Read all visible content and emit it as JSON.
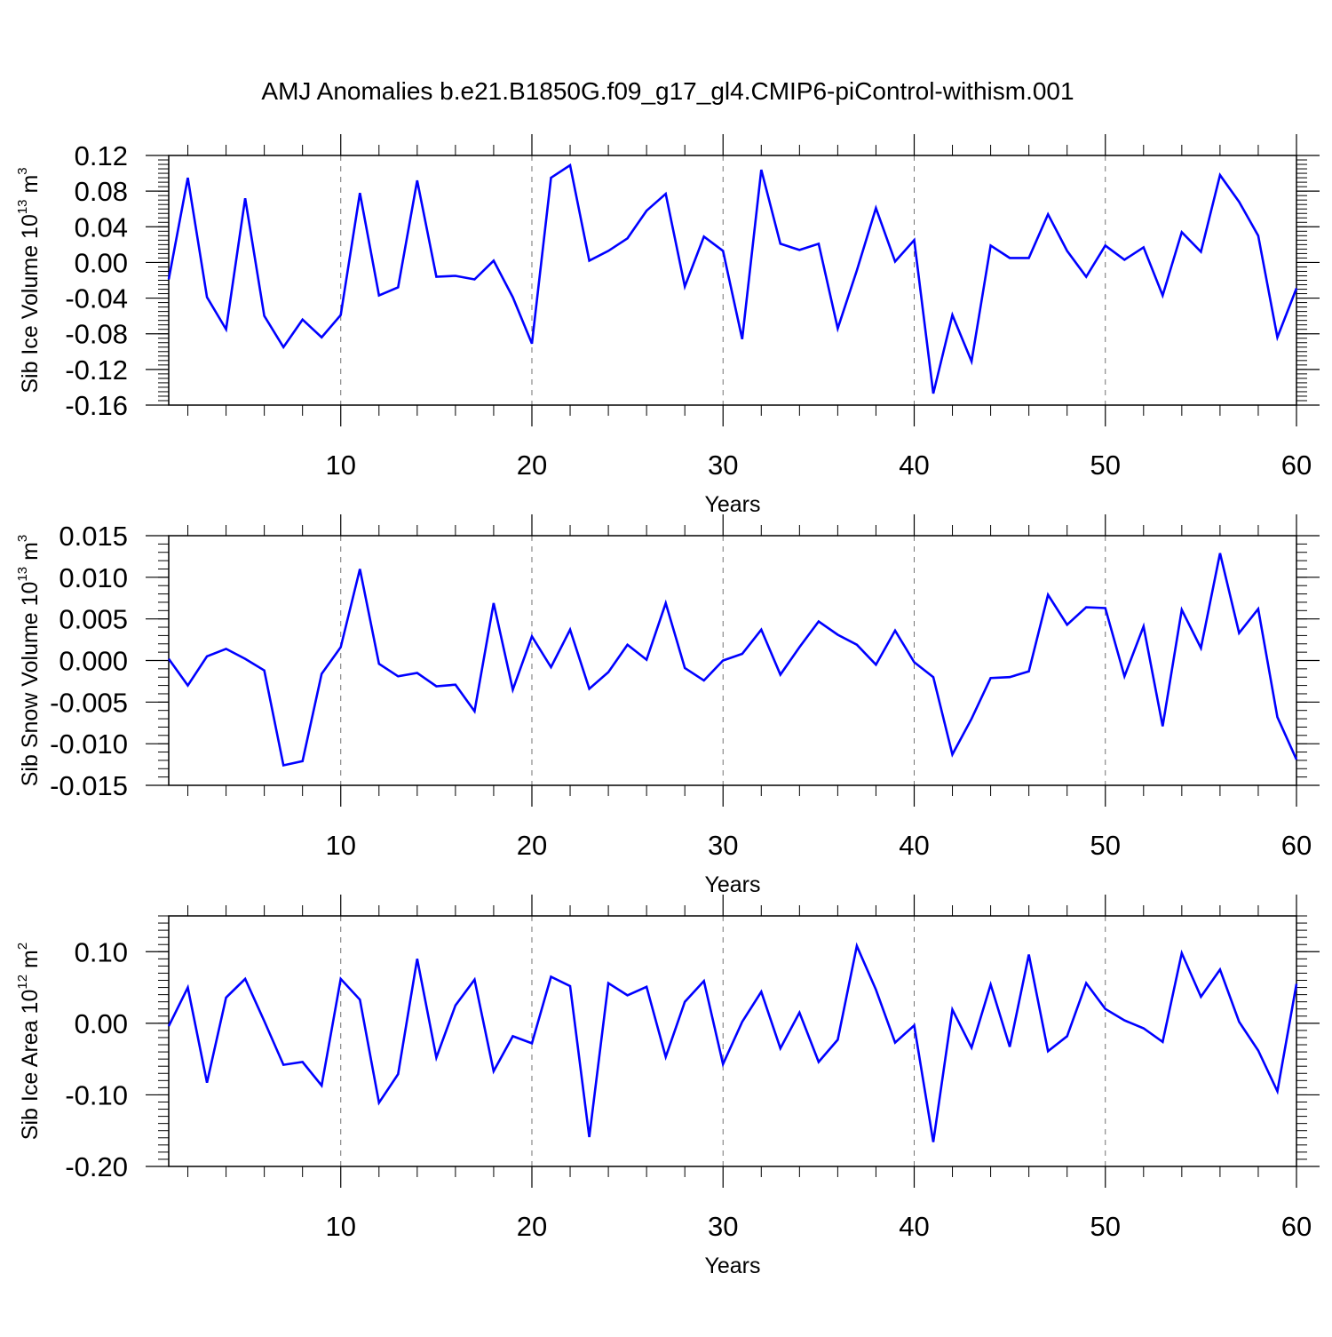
{
  "title": "AMJ Anomalies b.e21.B1850G.f09_g17_gl4.CMIP6-piControl-withism.001",
  "colors": {
    "line": "#0000ff",
    "axes": "#000000",
    "grid": "#000000"
  },
  "chart_data": [
    {
      "type": "line",
      "xlabel": "Years",
      "ylabel": {
        "text": "Sib Ice Volume 10",
        "exp": "13",
        "unit": " m",
        "unit_exp": "3"
      },
      "xlim": [
        1,
        60
      ],
      "ylim": [
        -0.16,
        0.12
      ],
      "xticks": [
        "10",
        "20",
        "30",
        "40",
        "50",
        "60"
      ],
      "yticks": [
        "0.12",
        "0.08",
        "0.04",
        "0.00",
        "-0.04",
        "-0.08",
        "-0.12",
        "-0.16"
      ],
      "x": [
        1,
        2,
        3,
        4,
        5,
        6,
        7,
        8,
        9,
        10,
        11,
        12,
        13,
        14,
        15,
        16,
        17,
        18,
        19,
        20,
        21,
        22,
        23,
        24,
        25,
        26,
        27,
        28,
        29,
        30,
        31,
        32,
        33,
        34,
        35,
        36,
        37,
        38,
        39,
        40,
        41,
        42,
        43,
        44,
        45,
        46,
        47,
        48,
        49,
        50,
        51,
        52,
        53,
        54,
        55,
        56,
        57,
        58,
        59,
        60
      ],
      "series": [
        {
          "values": [
            -0.019,
            0.095,
            -0.039,
            -0.075,
            0.072,
            -0.06,
            -0.095,
            -0.064,
            -0.084,
            -0.059,
            0.078,
            -0.037,
            -0.028,
            0.092,
            -0.016,
            -0.015,
            -0.019,
            0.002,
            -0.039,
            -0.091,
            0.095,
            0.109,
            0.002,
            0.013,
            0.027,
            0.058,
            0.077,
            -0.027,
            0.029,
            0.013,
            -0.086,
            0.104,
            0.021,
            0.014,
            0.021,
            -0.074,
            -0.009,
            0.061,
            0.001,
            0.025,
            -0.147,
            -0.059,
            -0.111,
            0.019,
            0.005,
            0.005,
            0.054,
            0.013,
            -0.016,
            0.019,
            0.003,
            0.017,
            -0.037,
            0.034,
            0.012,
            0.098,
            0.068,
            0.03,
            -0.084,
            -0.029
          ]
        }
      ]
    },
    {
      "type": "line",
      "xlabel": "Years",
      "ylabel": {
        "text": "Sib Snow Volume 10",
        "exp": "13",
        "unit": " m",
        "unit_exp": "3"
      },
      "xlim": [
        1,
        60
      ],
      "ylim": [
        -0.015,
        0.015
      ],
      "xticks": [
        "10",
        "20",
        "30",
        "40",
        "50",
        "60"
      ],
      "yticks": [
        "0.015",
        "0.010",
        "0.005",
        "0.000",
        "-0.005",
        "-0.010",
        "-0.015"
      ],
      "x": [
        1,
        2,
        3,
        4,
        5,
        6,
        7,
        8,
        9,
        10,
        11,
        12,
        13,
        14,
        15,
        16,
        17,
        18,
        19,
        20,
        21,
        22,
        23,
        24,
        25,
        26,
        27,
        28,
        29,
        30,
        31,
        32,
        33,
        34,
        35,
        36,
        37,
        38,
        39,
        40,
        41,
        42,
        43,
        44,
        45,
        46,
        47,
        48,
        49,
        50,
        51,
        52,
        53,
        54,
        55,
        56,
        57,
        58,
        59,
        60
      ],
      "series": [
        {
          "values": [
            0.0002,
            -0.003,
            0.0005,
            0.0014,
            0.0002,
            -0.0012,
            -0.0126,
            -0.0121,
            -0.0016,
            0.0016,
            0.011,
            -0.0004,
            -0.0019,
            -0.0015,
            -0.0031,
            -0.0029,
            -0.0061,
            0.0069,
            -0.0035,
            0.0029,
            -0.0008,
            0.0037,
            -0.0034,
            -0.0014,
            0.0019,
            0.0001,
            0.0069,
            -0.0009,
            -0.0024,
            0.0,
            0.0008,
            0.0037,
            -0.0017,
            0.0016,
            0.0047,
            0.0031,
            0.0019,
            -0.0005,
            0.0036,
            -0.0002,
            -0.002,
            -0.0113,
            -0.007,
            -0.0021,
            -0.002,
            -0.0013,
            0.0079,
            0.0043,
            0.0064,
            0.0063,
            -0.0019,
            0.0041,
            -0.0079,
            0.0061,
            0.0015,
            0.0129,
            0.0033,
            0.0062,
            -0.0068,
            -0.0119
          ]
        }
      ]
    },
    {
      "type": "line",
      "xlabel": "Years",
      "ylabel": {
        "text": "Sib Ice Area 10",
        "exp": "12",
        "unit": " m",
        "unit_exp": "2"
      },
      "xlim": [
        1,
        60
      ],
      "ylim": [
        -0.2,
        0.15
      ],
      "xticks": [
        "10",
        "20",
        "30",
        "40",
        "50",
        "60"
      ],
      "yticks": [
        "0.10",
        "0.00",
        "-0.10",
        "-0.20"
      ],
      "x": [
        1,
        2,
        3,
        4,
        5,
        6,
        7,
        8,
        9,
        10,
        11,
        12,
        13,
        14,
        15,
        16,
        17,
        18,
        19,
        20,
        21,
        22,
        23,
        24,
        25,
        26,
        27,
        28,
        29,
        30,
        31,
        32,
        33,
        34,
        35,
        36,
        37,
        38,
        39,
        40,
        41,
        42,
        43,
        44,
        45,
        46,
        47,
        48,
        49,
        50,
        51,
        52,
        53,
        54,
        55,
        56,
        57,
        58,
        59,
        60
      ],
      "series": [
        {
          "values": [
            -0.004,
            0.05,
            -0.083,
            0.036,
            0.062,
            0.003,
            -0.058,
            -0.054,
            -0.087,
            0.062,
            0.033,
            -0.111,
            -0.071,
            0.09,
            -0.048,
            0.025,
            0.061,
            -0.067,
            -0.018,
            -0.028,
            0.065,
            0.052,
            -0.159,
            0.056,
            0.039,
            0.051,
            -0.047,
            0.03,
            0.059,
            -0.057,
            0.002,
            0.044,
            -0.035,
            0.015,
            -0.054,
            -0.023,
            0.108,
            0.047,
            -0.027,
            -0.003,
            -0.166,
            0.019,
            -0.034,
            0.054,
            -0.033,
            0.096,
            -0.039,
            -0.018,
            0.056,
            0.02,
            0.004,
            -0.007,
            -0.026,
            0.098,
            0.037,
            0.075,
            0.002,
            -0.038,
            -0.095,
            0.055
          ]
        }
      ]
    }
  ]
}
